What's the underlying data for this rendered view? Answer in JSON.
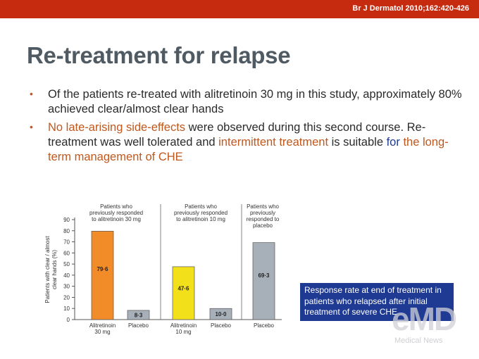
{
  "citation": "Br J Dermatol 2010;162:420-426",
  "slide": {
    "title": "Re-treatment for relapse",
    "bullets": [
      {
        "parts": [
          {
            "text": "Of the patients re-treated with alitretinoin 30 mg in this study, approximately  80% achieved clear/almost clear hands",
            "style": "normal"
          }
        ]
      },
      {
        "parts": [
          {
            "text": "No late-arising side-effects",
            "style": "orange"
          },
          {
            "text": " were observed during this second course. Re-treatment was well tolerated and ",
            "style": "normal"
          },
          {
            "text": "intermittent treatment",
            "style": "orange"
          },
          {
            "text": " is suitable ",
            "style": "normal"
          },
          {
            "text": "for",
            "style": "blue"
          },
          {
            "text": " the long-term management of CHE",
            "style": "orange"
          }
        ]
      }
    ]
  },
  "chart_data": {
    "type": "bar",
    "ylabel": "Patients with clear / almost clear hands (%)",
    "ylim": [
      0,
      90
    ],
    "yticks": [
      0,
      10,
      20,
      30,
      40,
      50,
      60,
      70,
      80,
      90
    ],
    "groups": [
      {
        "title": [
          "Patients who",
          "previously responded",
          "to alitretinoin 30 mg"
        ],
        "bars": [
          {
            "category": [
              "Alitretinoin",
              "30 mg"
            ],
            "value": 79.6,
            "label": "79·6",
            "color": "#f28c28"
          },
          {
            "category": [
              "Placebo"
            ],
            "value": 8.3,
            "label": "8·3",
            "color": "#a7b0b8"
          }
        ]
      },
      {
        "title": [
          "Patients who",
          "previously responded",
          "to alitretinoin 10 mg"
        ],
        "bars": [
          {
            "category": [
              "Alitretinoin",
              "10 mg"
            ],
            "value": 47.6,
            "label": "47·6",
            "color": "#f2e01a"
          },
          {
            "category": [
              "Placebo"
            ],
            "value": 10.0,
            "label": "10·0",
            "color": "#a7b0b8"
          }
        ]
      },
      {
        "title": [
          "Patients who",
          "previously",
          "responded to",
          "placebo"
        ],
        "bars": [
          {
            "category": [
              "Placebo"
            ],
            "value": 69.3,
            "label": "69·3",
            "color": "#a7b0b8"
          }
        ]
      }
    ],
    "grid": false
  },
  "callout": {
    "text": "Response rate at end of treatment in patients who relapsed after initial treatment of severe CHE"
  },
  "logo": {
    "main": "eMD",
    "sub": "Medical News"
  }
}
